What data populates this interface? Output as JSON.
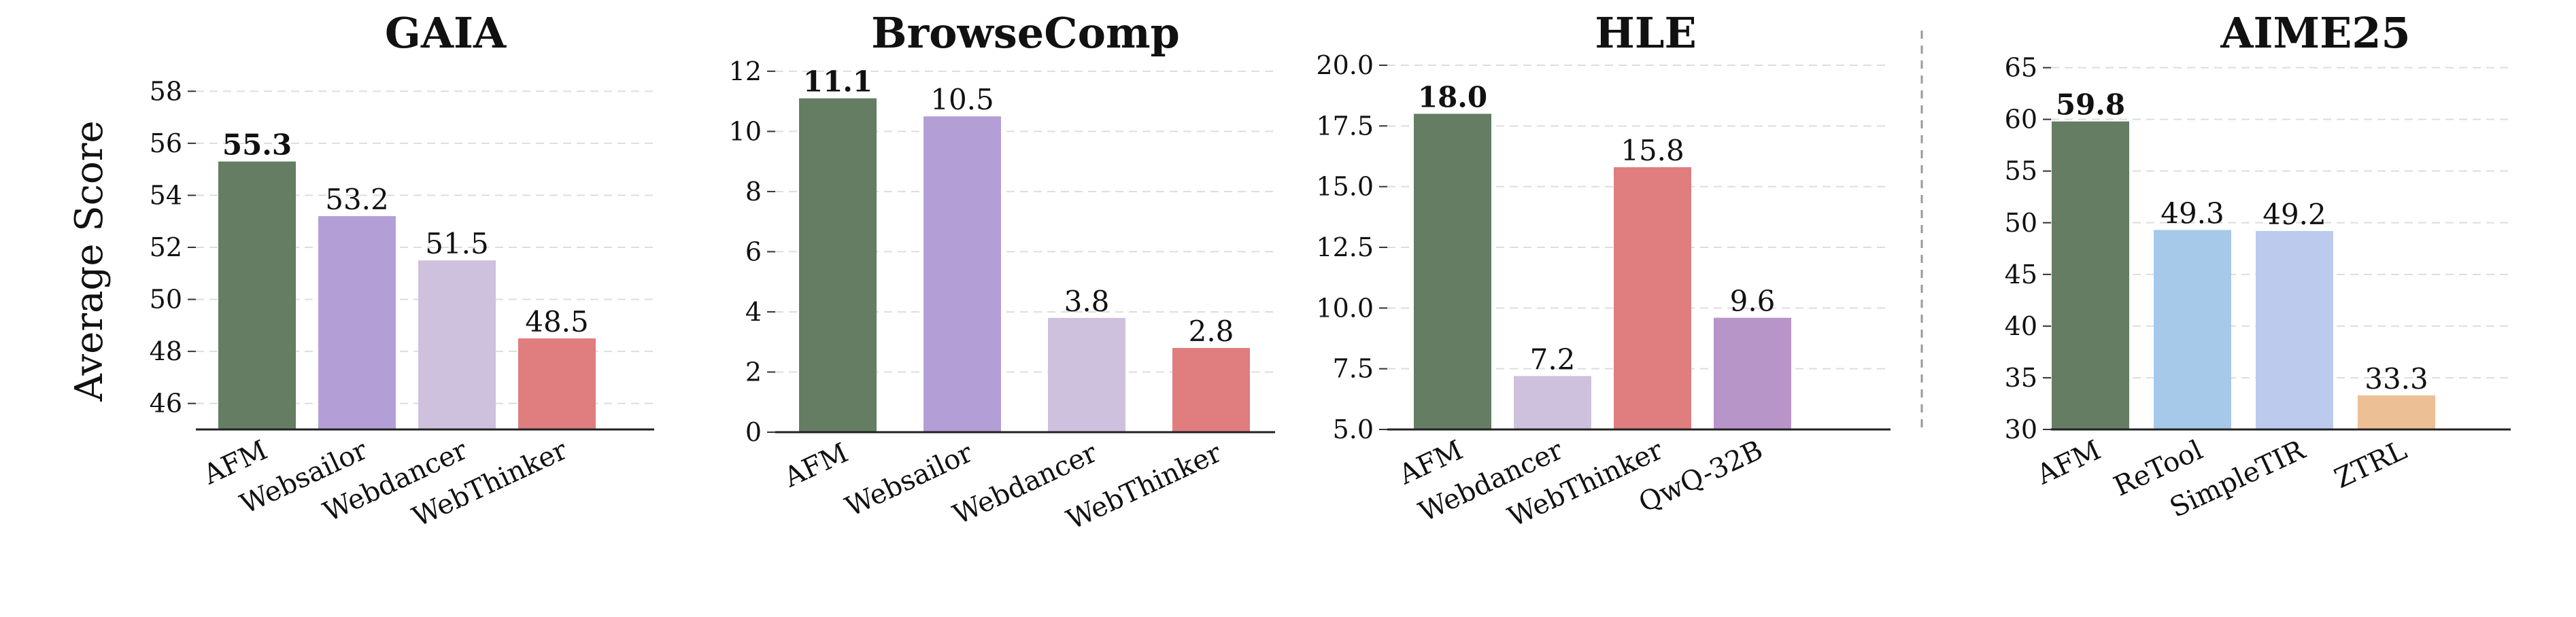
{
  "figure": {
    "ylabel": "Average Score",
    "separator": "dashed-vertical-line"
  },
  "chart_data": [
    {
      "type": "bar",
      "title": "GAIA",
      "categories": [
        "AFM",
        "Websailor",
        "Webdancer",
        "WebThinker"
      ],
      "values": [
        55.3,
        53.2,
        51.5,
        48.5
      ],
      "value_labels": [
        "55.3",
        "53.2",
        "51.5",
        "48.5"
      ],
      "best_index": 0,
      "colors": [
        "#647d63",
        "#b39fd5",
        "#cec1de",
        "#e07d7e"
      ],
      "ylim": [
        45,
        59
      ],
      "yticks": [
        46,
        48,
        50,
        52,
        54,
        56,
        58
      ],
      "ytick_labels": [
        "46",
        "48",
        "50",
        "52",
        "54",
        "56",
        "58"
      ],
      "grid": "y-dashed",
      "legend": "none"
    },
    {
      "type": "bar",
      "title": "BrowseComp",
      "categories": [
        "AFM",
        "Websailor",
        "Webdancer",
        "WebThinker"
      ],
      "values": [
        11.1,
        10.5,
        3.8,
        2.8
      ],
      "value_labels": [
        "11.1",
        "10.5",
        "3.8",
        "2.8"
      ],
      "best_index": 0,
      "colors": [
        "#647d63",
        "#b39fd5",
        "#cec1de",
        "#e07d7e"
      ],
      "ylim": [
        0,
        12.2
      ],
      "yticks": [
        0,
        2,
        4,
        6,
        8,
        10,
        12
      ],
      "ytick_labels": [
        "0",
        "2",
        "4",
        "6",
        "8",
        "10",
        "12"
      ],
      "grid": "y-dashed",
      "legend": "none"
    },
    {
      "type": "bar",
      "title": "HLE",
      "categories": [
        "AFM",
        "Webdancer",
        "WebThinker",
        "QwQ-32B"
      ],
      "values": [
        18.0,
        7.2,
        15.8,
        9.6
      ],
      "value_labels": [
        "18.0",
        "7.2",
        "15.8",
        "9.6"
      ],
      "best_index": 0,
      "colors": [
        "#647d63",
        "#cec1de",
        "#e07d7e",
        "#b895c8"
      ],
      "ylim": [
        5,
        20
      ],
      "yticks": [
        5,
        7.5,
        10,
        12.5,
        15,
        17.5,
        20
      ],
      "ytick_labels": [
        "5.0",
        "7.5",
        "10.0",
        "12.5",
        "15.0",
        "17.5",
        "20.0"
      ],
      "grid": "y-dashed",
      "legend": "none"
    },
    {
      "type": "bar",
      "title": "AIME25",
      "categories": [
        "AFM",
        "ReTool",
        "SimpleTIR",
        "ZTRL"
      ],
      "values": [
        59.8,
        49.3,
        49.2,
        33.3
      ],
      "value_labels": [
        "59.8",
        "49.3",
        "49.2",
        "33.3"
      ],
      "best_index": 0,
      "colors": [
        "#647d63",
        "#a6c9e9",
        "#bccbed",
        "#ecc094"
      ],
      "ylim": [
        30,
        65.5
      ],
      "yticks": [
        30,
        35,
        40,
        45,
        50,
        55,
        60,
        65
      ],
      "ytick_labels": [
        "30",
        "35",
        "40",
        "45",
        "50",
        "55",
        "60",
        "65"
      ],
      "grid": "y-dashed",
      "legend": "none"
    }
  ]
}
